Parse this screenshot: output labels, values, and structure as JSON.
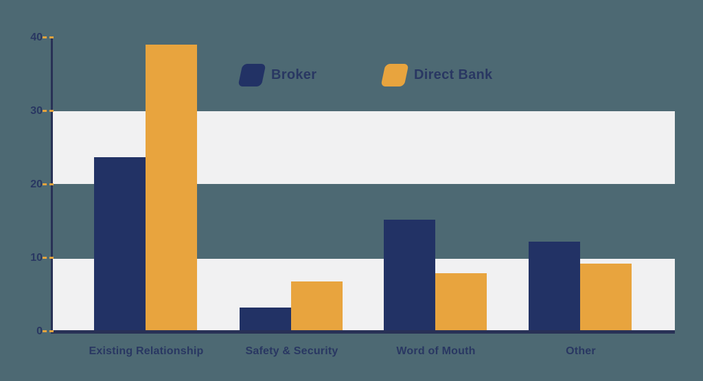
{
  "colors": {
    "background": "#4d6973",
    "band": "#f1f1f2",
    "text": "#293762",
    "axis": "#283156",
    "orange_tick": "#e8a43e"
  },
  "chart_data": {
    "type": "bar",
    "title": "",
    "xlabel": "",
    "ylabel": "",
    "categories": [
      "Existing Relationship",
      "Safety & Security",
      "Word of Mouth",
      "Other"
    ],
    "series": [
      {
        "name": "Broker",
        "color": "#223265",
        "values": [
          23.8,
          3.4,
          15.3,
          12.3
        ]
      },
      {
        "name": "Direct Bank",
        "color": "#e8a43e",
        "values": [
          39.2,
          6.9,
          8.0,
          9.3
        ]
      }
    ],
    "ylim": [
      0,
      40
    ],
    "yticks": [
      0,
      10,
      20,
      30,
      40
    ],
    "grid": "alternating horizontal light bands covering 0-10 and 20-30",
    "legend_position": "top-center"
  }
}
